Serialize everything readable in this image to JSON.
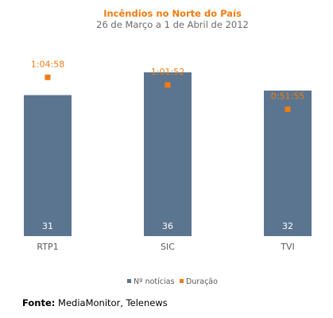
{
  "chart_data": {
    "type": "bar",
    "title": "Incêndios no Norte do País",
    "subtitle": "26 de Março a 1 de Abril de 2012",
    "categories": [
      "RTP1",
      "SIC",
      "TVI"
    ],
    "series": [
      {
        "name": "Nº notícias",
        "type": "bar",
        "values": [
          31,
          36,
          32
        ],
        "labels": [
          "31",
          "36",
          "32"
        ],
        "color": "#5b7590"
      },
      {
        "name": "Duração",
        "type": "marker",
        "values": [
          "1:04:58",
          "1:01:52",
          "0:51:55"
        ],
        "labels": [
          "1:04:58",
          "1:01:52",
          "0:51:55"
        ],
        "color": "#f07c12"
      }
    ],
    "ylim": [
      0,
      36
    ],
    "grid": false,
    "legend_position": "bottom",
    "title_color": "#f07c12",
    "subtitle_color": "#6b6b6b",
    "label_color": "#5a5a5a",
    "bar_label_color": "#ffffff"
  },
  "source": {
    "label": "Fonte:",
    "text": "MediaMonitor, Telenews"
  }
}
